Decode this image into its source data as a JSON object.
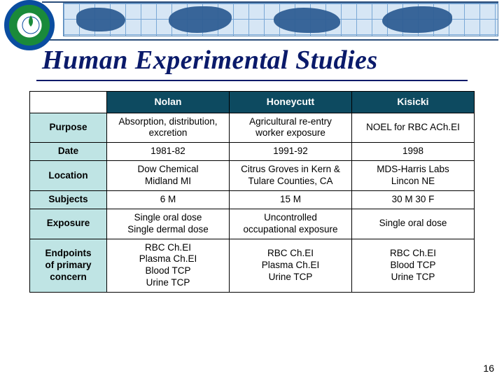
{
  "banner": {
    "grid_color": "#7aa8d6",
    "grid_bg": "#d6e6f5",
    "continent_color": "#2f5e93",
    "line_color": "#2a4d7a",
    "seal_outer": "#0a4da0",
    "seal_green": "#1a8a3a"
  },
  "title": {
    "text": "Human Experimental Studies",
    "color": "#0a1a6a",
    "font_family": "Times New Roman",
    "font_style": "italic",
    "font_size_pt": 28
  },
  "table": {
    "type": "table",
    "header_bg": "#0d4a60",
    "header_text_color": "#ffffff",
    "rowheader_bg": "#bfe4e4",
    "cell_bg": "#ffffff",
    "border_color": "#000000",
    "font_size_pt": 10,
    "columns": [
      "Nolan",
      "Honeycutt",
      "Kisicki"
    ],
    "rows": [
      {
        "label": "Purpose",
        "cells": [
          "Absorption, distribution,\nexcretion",
          "Agricultural re-entry\nworker exposure",
          "NOEL for RBC ACh.EI"
        ]
      },
      {
        "label": "Date",
        "cells": [
          "1981-82",
          "1991-92",
          "1998"
        ]
      },
      {
        "label": "Location",
        "cells": [
          "Dow Chemical\nMidland MI",
          "Citrus Groves in Kern &\nTulare Counties, CA",
          "MDS-Harris Labs\nLincon NE"
        ]
      },
      {
        "label": "Subjects",
        "cells": [
          "6 M",
          "15 M",
          "30 M 30 F"
        ]
      },
      {
        "label": "Exposure",
        "cells": [
          "Single oral dose\nSingle dermal dose",
          "Uncontrolled\noccupational exposure",
          "Single oral dose"
        ]
      },
      {
        "label": "Endpoints\nof primary\nconcern",
        "cells": [
          "RBC Ch.EI\nPlasma Ch.EI\nBlood TCP\nUrine TCP",
          "RBC Ch.EI\nPlasma Ch.EI\nUrine TCP",
          "RBC Ch.EI\nBlood TCP\nUrine TCP"
        ]
      }
    ]
  },
  "page_number": "16"
}
